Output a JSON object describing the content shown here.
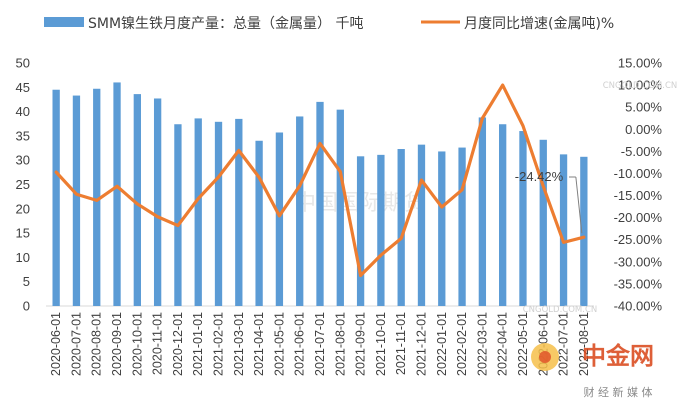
{
  "chart_data": {
    "type": "bar+line",
    "categories": [
      "2020-06-01",
      "2020-07-01",
      "2020-08-01",
      "2020-09-01",
      "2020-10-01",
      "2020-11-01",
      "2020-12-01",
      "2021-01-01",
      "2021-02-01",
      "2021-03-01",
      "2021-04-01",
      "2021-05-01",
      "2021-06-01",
      "2021-07-01",
      "2021-08-01",
      "2021-09-01",
      "2021-10-01",
      "2021-11-01",
      "2021-12-01",
      "2022-01-01",
      "2022-02-01",
      "2022-03-01",
      "2022-04-01",
      "2022-05-01",
      "2022-06-01",
      "2022-07-01",
      "2022-08-01"
    ],
    "series": [
      {
        "name": "SMM镍生铁月度产量：总量（金属量） 千吨",
        "type": "bar",
        "axis": "left",
        "color": "#5b9bd5",
        "values": [
          44.5,
          43.3,
          44.7,
          46.0,
          43.6,
          42.7,
          37.4,
          38.6,
          37.9,
          38.5,
          34.0,
          35.7,
          39.0,
          42.0,
          40.4,
          30.8,
          31.1,
          32.3,
          33.2,
          31.8,
          32.6,
          38.8,
          37.4,
          36.0,
          34.2,
          31.2,
          30.7
        ]
      },
      {
        "name": "月度同比增速(金属吨)%",
        "type": "line",
        "axis": "right",
        "color": "#ed7d31",
        "values": [
          -9.7,
          -14.7,
          -16.1,
          -12.9,
          -16.9,
          -19.8,
          -21.8,
          -15.7,
          -10.8,
          -4.8,
          -10.9,
          -19.6,
          -12.8,
          -3.2,
          -9.6,
          -33.1,
          -28.5,
          -24.7,
          -11.5,
          -17.6,
          -13.7,
          2.5,
          10.0,
          0.8,
          -12.9,
          -25.6,
          -24.42
        ]
      }
    ],
    "y_left": {
      "min": 0,
      "max": 50,
      "step": 5
    },
    "y_right": {
      "min": -40,
      "max": 15,
      "step": 5,
      "format": "percent"
    },
    "legend_position": "top",
    "grid": false,
    "annotations": [
      {
        "text": "-24.42%",
        "index": 26
      }
    ]
  },
  "watermarks": [
    "中国国际期货",
    "CNGOLD.COM.CN",
    "中金网",
    "CNGOLD.COM.CN",
    "财 经 新 媒 体"
  ],
  "colors": {
    "bar": "#5b9bd5",
    "line": "#ed7d31"
  }
}
